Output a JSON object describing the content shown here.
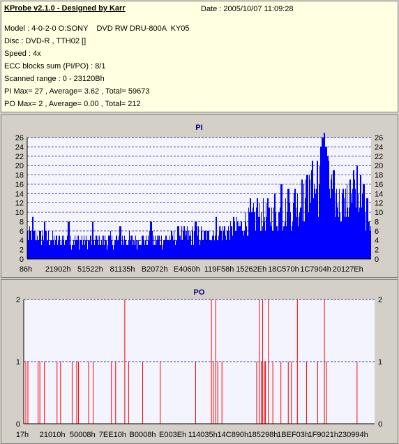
{
  "header": {
    "title": "KProbe v2.1.0 - Designed by Karr",
    "date": "Date : 2005/10/07 11:09:28",
    "lines": [
      "Model : 4-0-2-0 O:SONY    DVD RW DRU-800A  KY05",
      "Disc : DVD-R , TTH02 []",
      "Speed : 4x",
      "ECC blocks sum (PI/PO) : 8/1",
      "Scanned range : 0 - 23120Bh",
      "PI Max= 27 , Average= 3.62 , Total= 59673",
      "PO Max= 2 , Average= 0.00 , Total= 212"
    ]
  },
  "chart_data": [
    {
      "type": "bar",
      "title": "PI",
      "color": "#0000ff",
      "ylim": [
        0,
        26
      ],
      "yticks": [
        0,
        2,
        4,
        6,
        8,
        10,
        12,
        14,
        16,
        18,
        20,
        22,
        24,
        26
      ],
      "xticks": [
        "86h",
        "21902h",
        "51522h",
        "81135h",
        "B2072h",
        "E4060h",
        "119F58h",
        "15262Eh",
        "18C570h",
        "1C7904h",
        "20127Eh"
      ],
      "grid": "dashed",
      "profile": [
        [
          0.0,
          5
        ],
        [
          0.04,
          5
        ],
        [
          0.08,
          4
        ],
        [
          0.12,
          4
        ],
        [
          0.16,
          4
        ],
        [
          0.2,
          4
        ],
        [
          0.24,
          4
        ],
        [
          0.28,
          4
        ],
        [
          0.32,
          4
        ],
        [
          0.36,
          4
        ],
        [
          0.4,
          4
        ],
        [
          0.44,
          5
        ],
        [
          0.48,
          5
        ],
        [
          0.52,
          5
        ],
        [
          0.56,
          6
        ],
        [
          0.6,
          6
        ],
        [
          0.64,
          8
        ],
        [
          0.68,
          9
        ],
        [
          0.72,
          9
        ],
        [
          0.76,
          10
        ],
        [
          0.8,
          12
        ],
        [
          0.84,
          15
        ],
        [
          0.88,
          15
        ],
        [
          0.92,
          11
        ],
        [
          0.96,
          13
        ],
        [
          0.99,
          9
        ],
        [
          1.0,
          8
        ]
      ],
      "peaks": [
        [
          0.015,
          9
        ],
        [
          0.05,
          8
        ],
        [
          0.12,
          8
        ],
        [
          0.19,
          8
        ],
        [
          0.27,
          7
        ],
        [
          0.36,
          8
        ],
        [
          0.44,
          7
        ],
        [
          0.49,
          8
        ],
        [
          0.55,
          9
        ],
        [
          0.6,
          9
        ],
        [
          0.65,
          13
        ],
        [
          0.67,
          13
        ],
        [
          0.7,
          13
        ],
        [
          0.72,
          14
        ],
        [
          0.74,
          16
        ],
        [
          0.76,
          15
        ],
        [
          0.78,
          15
        ],
        [
          0.8,
          17
        ],
        [
          0.815,
          18
        ],
        [
          0.83,
          21
        ],
        [
          0.845,
          21
        ],
        [
          0.855,
          24
        ],
        [
          0.86,
          26
        ],
        [
          0.865,
          27
        ],
        [
          0.87,
          24
        ],
        [
          0.875,
          22
        ],
        [
          0.885,
          17
        ],
        [
          0.9,
          14
        ],
        [
          0.92,
          15
        ],
        [
          0.94,
          17
        ],
        [
          0.95,
          19
        ],
        [
          0.96,
          20
        ],
        [
          0.97,
          18
        ],
        [
          0.98,
          16
        ],
        [
          0.99,
          13
        ]
      ]
    },
    {
      "type": "bar",
      "title": "PO",
      "color": "#ff0000",
      "ylim": [
        0,
        2
      ],
      "yticks": [
        0,
        1,
        2
      ],
      "xticks": [
        "17h",
        "21010h",
        "50008h",
        "7EE10h",
        "B0008h",
        "E003Eh",
        "114035h",
        "14C890h",
        "185298h",
        "1BEF03h",
        "1F9021h",
        "230994h"
      ],
      "grid": "dashed",
      "events": [
        [
          0.006,
          1
        ],
        [
          0.012,
          1
        ],
        [
          0.041,
          1
        ],
        [
          0.046,
          1
        ],
        [
          0.059,
          1
        ],
        [
          0.095,
          1
        ],
        [
          0.105,
          1
        ],
        [
          0.138,
          1
        ],
        [
          0.151,
          1
        ],
        [
          0.156,
          1
        ],
        [
          0.185,
          1
        ],
        [
          0.198,
          1
        ],
        [
          0.25,
          1
        ],
        [
          0.262,
          1
        ],
        [
          0.288,
          2
        ],
        [
          0.299,
          1
        ],
        [
          0.339,
          1
        ],
        [
          0.389,
          1
        ],
        [
          0.49,
          1
        ],
        [
          0.535,
          2
        ],
        [
          0.54,
          1
        ],
        [
          0.547,
          2
        ],
        [
          0.553,
          1
        ],
        [
          0.565,
          1
        ],
        [
          0.664,
          1
        ],
        [
          0.672,
          2
        ],
        [
          0.677,
          1
        ],
        [
          0.681,
          2
        ],
        [
          0.686,
          1
        ],
        [
          0.689,
          1
        ],
        [
          0.697,
          2
        ],
        [
          0.71,
          1
        ],
        [
          0.733,
          1
        ],
        [
          0.754,
          1
        ],
        [
          0.763,
          1
        ],
        [
          0.78,
          2
        ],
        [
          0.806,
          1
        ],
        [
          0.838,
          1
        ],
        [
          0.857,
          2
        ],
        [
          0.863,
          1
        ],
        [
          0.95,
          1
        ]
      ]
    }
  ]
}
